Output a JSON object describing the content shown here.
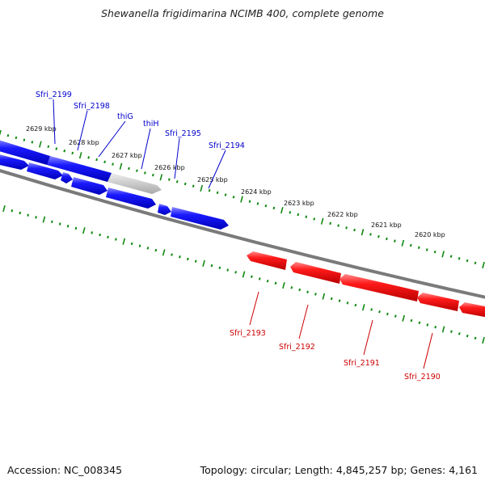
{
  "title": "Shewanella frigidimarina NCIMB 400, complete genome",
  "colors": {
    "forward_strand": "#0000ee",
    "reverse_strand": "#ee0000",
    "backbone": "#7a7a7a",
    "ticks": "#118811",
    "pseudo_gene": "#c8c8c8"
  },
  "ticks": {
    "labels": [
      "2629 kbp",
      "2628 kbp",
      "2627 kbp",
      "2626 kbp",
      "2625 kbp",
      "2624 kbp",
      "2623 kbp",
      "2622 kbp",
      "2621 kbp",
      "2620 kbp"
    ]
  },
  "genes": {
    "forward": [
      {
        "name": "Sfri_2199",
        "color": "#0000cc"
      },
      {
        "name": "Sfri_2198",
        "color": "#0000cc"
      },
      {
        "name": "thiG",
        "color": "#0000cc"
      },
      {
        "name": "thiH",
        "color": "#0000cc"
      },
      {
        "name": "Sfri_2195",
        "color": "#0000cc"
      },
      {
        "name": "Sfri_2194",
        "color": "#0000cc"
      }
    ],
    "reverse": [
      {
        "name": "Sfri_2193",
        "color": "#cc0000"
      },
      {
        "name": "Sfri_2192",
        "color": "#cc0000"
      },
      {
        "name": "Sfri_2191",
        "color": "#cc0000"
      },
      {
        "name": "Sfri_2190",
        "color": "#cc0000"
      }
    ]
  },
  "footer": {
    "accession": "Accession: NC_008345",
    "summary": "Topology: circular; Length: 4,845,257 bp; Genes: 4,161"
  }
}
